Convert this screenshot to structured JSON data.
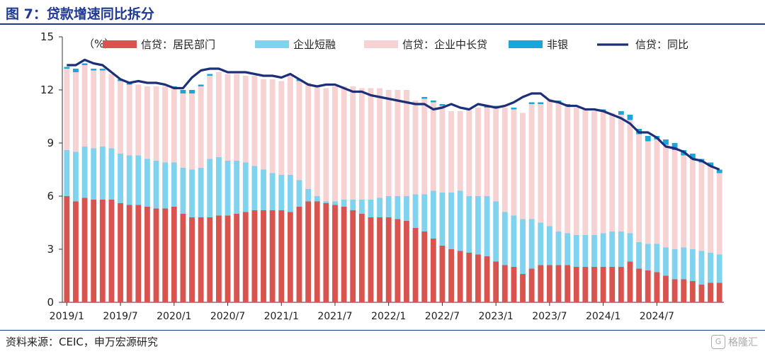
{
  "page": {
    "title": "图 7：贷款增速同比拆分",
    "source": "资料来源：CEIC，申万宏源研究",
    "watermark": "格隆汇",
    "watermark_badge": "G"
  },
  "chart_data": {
    "type": "bar",
    "stacked": true,
    "unit_label": "（%）",
    "ylim": [
      0,
      15
    ],
    "yticks": [
      0,
      3,
      6,
      9,
      12,
      15
    ],
    "x_tick_labels": [
      "2019/1",
      "2019/7",
      "2020/1",
      "2020/7",
      "2021/1",
      "2021/7",
      "2022/1",
      "2022/7",
      "2023/1",
      "2023/7",
      "2024/1",
      "2024/7"
    ],
    "x_tick_every": 6,
    "legend_position": "top",
    "colors": {
      "household": "#d9534f",
      "short_term": "#7fd3ef",
      "mid_long": "#f6d2d2",
      "nonbank": "#1aa6d8",
      "total": "#1b2f7a"
    },
    "series": [
      {
        "key": "household",
        "name": "信贷：居民部门",
        "kind": "bar",
        "values": [
          6.0,
          5.7,
          5.9,
          5.8,
          5.8,
          5.8,
          5.6,
          5.5,
          5.5,
          5.4,
          5.3,
          5.3,
          5.4,
          5.0,
          4.8,
          4.8,
          4.8,
          4.9,
          4.9,
          5.0,
          5.1,
          5.2,
          5.2,
          5.2,
          5.2,
          5.1,
          5.4,
          5.7,
          5.7,
          5.6,
          5.5,
          5.4,
          5.2,
          5.0,
          4.8,
          4.8,
          4.8,
          4.7,
          4.6,
          4.2,
          4.0,
          3.6,
          3.2,
          3.0,
          2.9,
          2.8,
          2.7,
          2.6,
          2.3,
          2.1,
          2.0,
          1.6,
          1.9,
          2.1,
          2.1,
          2.1,
          2.1,
          2.0,
          2.0,
          2.0,
          2.0,
          2.0,
          2.0,
          2.3,
          1.9,
          1.8,
          1.7,
          1.5,
          1.3,
          1.3,
          1.2,
          1.0,
          1.1,
          1.1
        ]
      },
      {
        "key": "short_term",
        "name": "企业短融",
        "kind": "bar",
        "values": [
          2.6,
          2.8,
          2.9,
          2.9,
          3.0,
          2.9,
          2.8,
          2.8,
          2.8,
          2.7,
          2.7,
          2.6,
          2.5,
          2.6,
          2.7,
          2.8,
          3.3,
          3.3,
          3.1,
          3.0,
          2.8,
          2.5,
          2.3,
          2.1,
          2.0,
          2.1,
          1.5,
          0.7,
          0.3,
          0.1,
          0.2,
          0.4,
          0.6,
          0.8,
          1.0,
          1.1,
          1.2,
          1.3,
          1.4,
          1.9,
          2.1,
          2.7,
          3.0,
          3.2,
          3.4,
          3.2,
          3.3,
          3.4,
          3.4,
          3.0,
          2.9,
          3.1,
          2.8,
          2.4,
          2.2,
          1.9,
          1.8,
          1.8,
          1.8,
          1.8,
          1.9,
          2.0,
          2.0,
          1.6,
          1.5,
          1.5,
          1.6,
          1.6,
          1.7,
          1.8,
          1.8,
          1.9,
          1.7,
          1.6
        ]
      },
      {
        "key": "mid_long",
        "name": "信贷：企业中长贷",
        "kind": "bar",
        "values": [
          4.6,
          4.5,
          4.6,
          4.4,
          4.3,
          4.2,
          4.1,
          4.0,
          4.0,
          4.1,
          4.2,
          4.3,
          4.2,
          4.2,
          4.3,
          4.6,
          4.7,
          4.8,
          4.9,
          4.9,
          4.9,
          5.1,
          5.1,
          5.3,
          5.3,
          5.6,
          5.6,
          6.0,
          6.2,
          6.4,
          6.5,
          6.4,
          6.4,
          6.3,
          6.3,
          6.2,
          6.0,
          6.0,
          6.0,
          5.3,
          5.4,
          5.0,
          4.9,
          4.6,
          4.5,
          4.9,
          5.0,
          5.0,
          5.3,
          5.9,
          6.0,
          6.0,
          6.5,
          6.7,
          7.2,
          7.3,
          7.2,
          7.2,
          7.1,
          7.0,
          6.9,
          6.7,
          6.6,
          6.4,
          6.1,
          5.8,
          5.9,
          5.8,
          5.6,
          5.2,
          5.1,
          5.0,
          4.9,
          4.6
        ]
      },
      {
        "key": "nonbank",
        "name": "非银",
        "kind": "bar",
        "values": [
          0.1,
          0.2,
          0.1,
          0.1,
          0.1,
          0.0,
          0.1,
          0.1,
          0.0,
          0.0,
          0.0,
          0.0,
          0.1,
          0.2,
          0.2,
          0.1,
          0.1,
          0.0,
          0.0,
          0.0,
          0.0,
          0.0,
          0.0,
          0.0,
          0.0,
          0.0,
          0.1,
          0.0,
          0.0,
          0.0,
          0.0,
          0.0,
          0.0,
          0.0,
          0.0,
          0.0,
          0.0,
          0.0,
          0.0,
          0.0,
          0.1,
          0.1,
          0.1,
          0.0,
          0.0,
          0.0,
          0.0,
          0.1,
          0.1,
          0.0,
          0.1,
          0.0,
          0.1,
          0.1,
          0.0,
          0.1,
          0.1,
          0.0,
          0.0,
          0.0,
          0.1,
          0.0,
          0.2,
          0.3,
          0.3,
          0.3,
          0.2,
          0.3,
          0.4,
          0.3,
          0.3,
          0.2,
          0.2,
          0.2
        ]
      },
      {
        "key": "total",
        "name": "信贷：同比",
        "kind": "line",
        "values": [
          13.4,
          13.4,
          13.7,
          13.5,
          13.4,
          13.0,
          12.6,
          12.4,
          12.5,
          12.4,
          12.4,
          12.3,
          12.1,
          12.1,
          12.7,
          13.1,
          13.2,
          13.2,
          13.0,
          13.0,
          13.0,
          12.9,
          12.8,
          12.8,
          12.7,
          12.9,
          12.6,
          12.3,
          12.2,
          12.3,
          12.3,
          12.1,
          11.9,
          11.9,
          11.7,
          11.6,
          11.5,
          11.4,
          11.3,
          11.2,
          11.2,
          10.9,
          11.0,
          11.2,
          11.0,
          10.9,
          11.2,
          11.1,
          11.0,
          11.1,
          11.3,
          11.6,
          11.8,
          11.8,
          11.4,
          11.3,
          11.1,
          11.1,
          10.9,
          10.9,
          10.8,
          10.6,
          10.4,
          10.1,
          9.6,
          9.6,
          9.3,
          8.8,
          8.7,
          8.5,
          8.1,
          8.0,
          7.7,
          7.5
        ]
      }
    ]
  }
}
